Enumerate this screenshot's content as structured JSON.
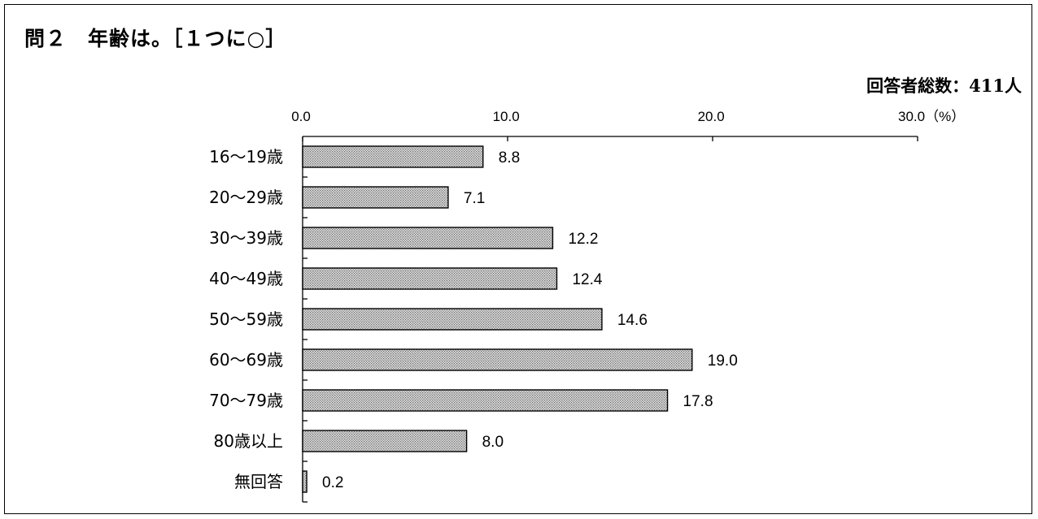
{
  "header": {
    "title": "問２　年齢は。［１つに○］",
    "total_respondents": "回答者総数：411人"
  },
  "chart_data": {
    "type": "bar",
    "orientation": "horizontal",
    "categories": [
      "16～19歳",
      "20～29歳",
      "30～39歳",
      "40～49歳",
      "50～59歳",
      "60～69歳",
      "70～79歳",
      "80歳以上",
      "無回答"
    ],
    "values": [
      8.8,
      7.1,
      12.2,
      12.4,
      14.6,
      19.0,
      17.8,
      8.0,
      0.2
    ],
    "value_labels": [
      "8.8",
      "7.1",
      "12.2",
      "12.4",
      "14.6",
      "19.0",
      "17.8",
      "8.0",
      "0.2"
    ],
    "xlim": [
      0,
      30
    ],
    "x_ticks": [
      0,
      10,
      20,
      30
    ],
    "x_tick_labels": [
      "0.0",
      "10.0",
      "20.0",
      "30.0（%）"
    ],
    "axis_position": "top",
    "bar_fill": "dotted-gray",
    "grid": false
  }
}
